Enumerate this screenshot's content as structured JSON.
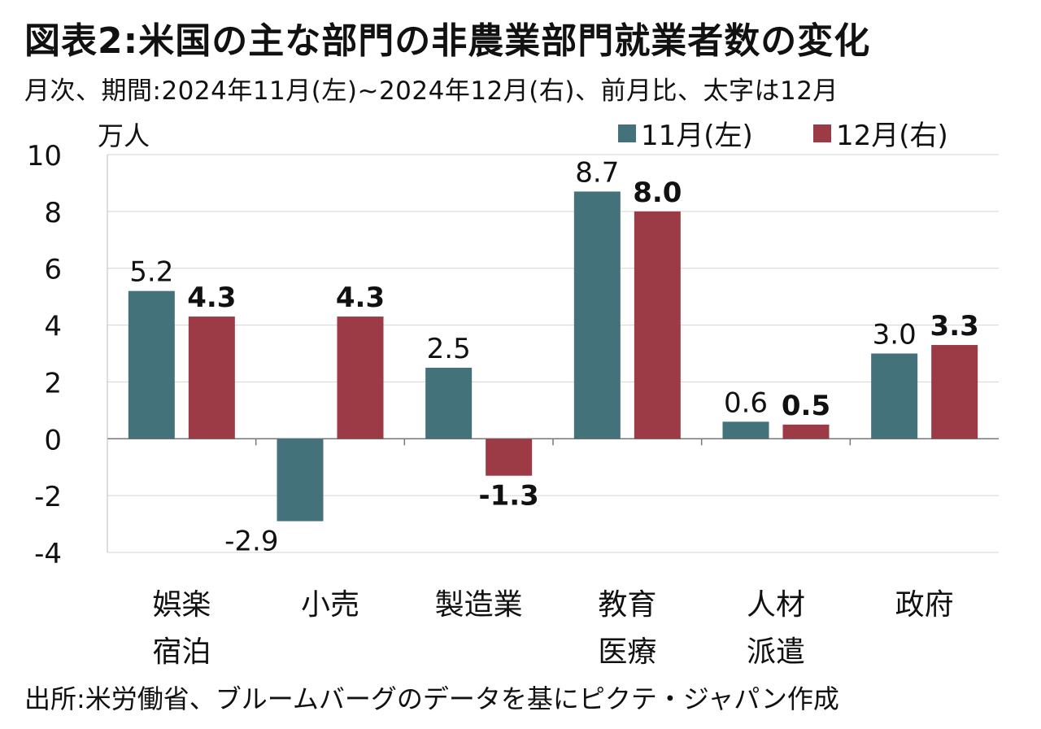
{
  "title": "図表2:米国の主な部門の非農業部門就業者数の変化",
  "subtitle": "月次、期間:2024年11月(左)~2024年12月(右)、前月比、太字は12月",
  "source": "出所:米労働省、ブルームバーグのデータを基にピクテ・ジャパン作成",
  "chart_data": {
    "type": "bar",
    "ylabel": "万人",
    "ylim": [
      -4,
      10
    ],
    "yticks": [
      -4,
      -2,
      0,
      2,
      4,
      6,
      8,
      10
    ],
    "ytick_labels": [
      "-4",
      "-2",
      "0",
      "2",
      "4",
      "6",
      "8",
      "10"
    ],
    "grid": true,
    "legend_position": "top-right",
    "categories": [
      [
        "娯楽",
        "宿泊"
      ],
      [
        "小売"
      ],
      [
        "製造業"
      ],
      [
        "教育",
        "医療"
      ],
      [
        "人材",
        "派遣"
      ],
      [
        "政府"
      ]
    ],
    "series": [
      {
        "name": "11月(左)",
        "color": "#44727a",
        "values": [
          5.2,
          -2.9,
          2.5,
          8.7,
          0.6,
          3.0
        ],
        "labels": [
          "5.2",
          "-2.9",
          "2.5",
          "8.7",
          "0.6",
          "3.0"
        ],
        "bold": false
      },
      {
        "name": "12月(右)",
        "color": "#9c3b45",
        "values": [
          4.3,
          4.3,
          -1.3,
          8.0,
          0.5,
          3.3
        ],
        "labels": [
          "4.3",
          "4.3",
          "-1.3",
          "8.0",
          "0.5",
          "3.3"
        ],
        "bold": true
      }
    ]
  }
}
